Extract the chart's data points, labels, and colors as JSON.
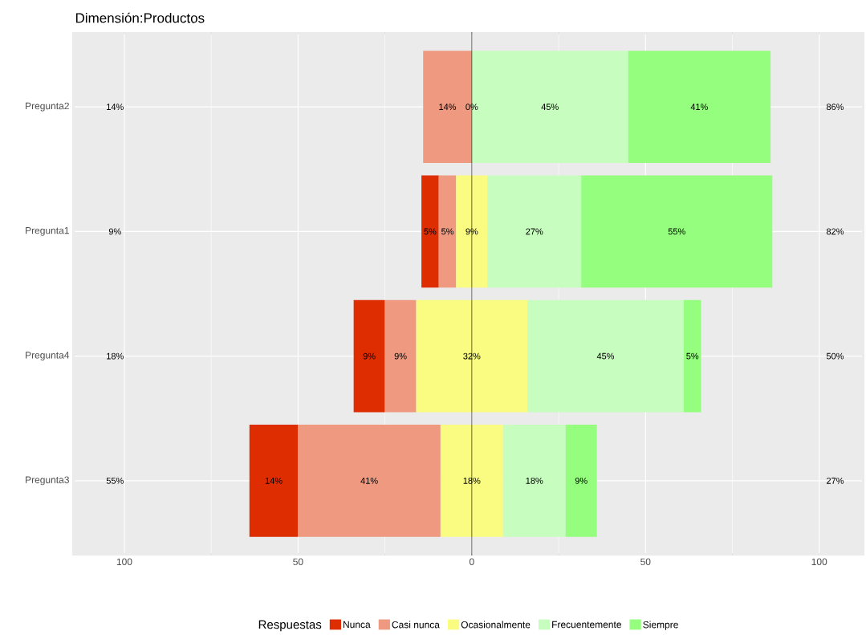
{
  "chart_data": {
    "type": "bar",
    "orientation": "horizontal",
    "title": "Dimensión:Productos",
    "legend_title": "Respuestas",
    "legend": "bottom",
    "grid": true,
    "categories": [
      "Pregunta2",
      "Pregunta1",
      "Pregunta4",
      "Pregunta3"
    ],
    "series": [
      {
        "name": "Nunca",
        "color": "#de2d00",
        "values": [
          null,
          5,
          9,
          14
        ],
        "base": [
          null,
          -14.5,
          -34,
          -64
        ],
        "value_labels": [
          null,
          "5%",
          "9%",
          "14%"
        ]
      },
      {
        "name": "Casi nunca",
        "color": "#ee9980",
        "values": [
          14,
          5,
          9,
          41
        ],
        "base": [
          -14,
          -9.5,
          -25,
          -50
        ],
        "value_labels": [
          "14%",
          "5%",
          "9%",
          "41%"
        ]
      },
      {
        "name": "Ocasionalmente",
        "color": "#f9fc80",
        "values": [
          0,
          9,
          32,
          18
        ],
        "base": [
          null,
          -4.5,
          -16,
          -9
        ],
        "value_labels": [
          "0%",
          "9%",
          "32%",
          "18%"
        ]
      },
      {
        "name": "Frecuentemente",
        "color": "#c8fdc0",
        "values": [
          45,
          27,
          45,
          18
        ],
        "base": [
          0,
          4.5,
          16,
          9
        ],
        "value_labels": [
          "45%",
          "27%",
          "45%",
          "18%"
        ]
      },
      {
        "name": "Siempre",
        "color": "#95fe7e",
        "values": [
          41,
          55,
          5,
          9
        ],
        "base": [
          45,
          31.5,
          61,
          27
        ],
        "value_labels": [
          "41%",
          "55%",
          "5%",
          "9%"
        ]
      }
    ],
    "xlim": [
      -115,
      113
    ],
    "xticks": [
      {
        "value": -100,
        "label": "100"
      },
      {
        "value": -50,
        "label": "50"
      },
      0,
      50,
      100
    ],
    "ref_lines": [
      {
        "axis": "x",
        "value": 0,
        "color": "#000000"
      }
    ],
    "annotations": [
      "14%",
      "9%",
      "18%",
      "55%",
      "86%",
      "82%",
      "50%",
      "27%"
    ]
  }
}
